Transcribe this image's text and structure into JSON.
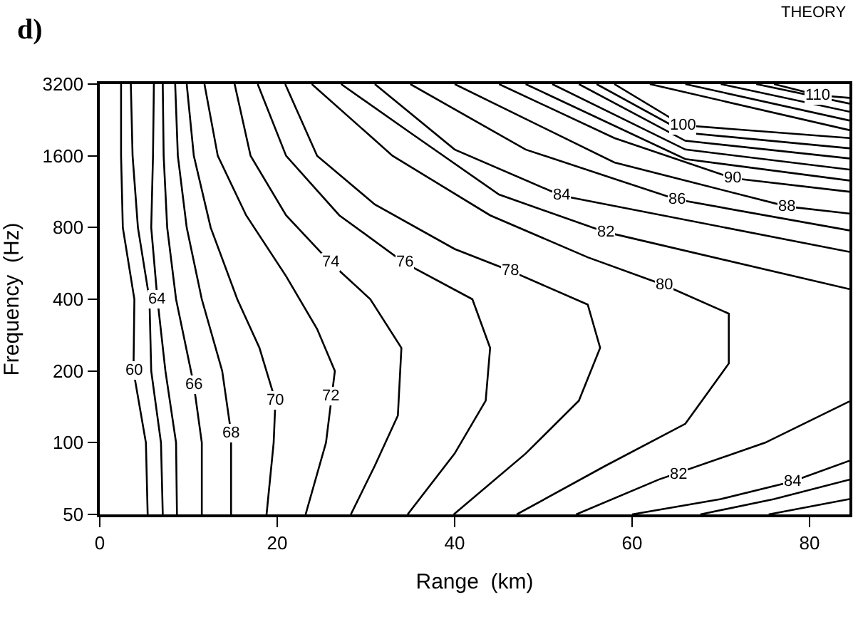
{
  "chart_data": {
    "type": "line",
    "title": "d)",
    "xlabel": "Range  (km)",
    "ylabel": "Frequency  (Hz)",
    "xlim": [
      0,
      84.5
    ],
    "xticks": [
      0,
      20,
      40,
      60,
      80
    ],
    "ylim": [
      50,
      3200
    ],
    "yticks": [
      50,
      100,
      200,
      400,
      800,
      1600,
      3200
    ],
    "log": "y",
    "marker": "none",
    "line_style": "solid",
    "series": [
      {
        "color": "#000000",
        "x": [
          5.4,
          5.2,
          3.8,
          3.9,
          2.6,
          2.4,
          2.4
        ],
        "values": [
          50,
          100,
          200,
          400,
          800,
          1600,
          3200
        ]
      },
      {
        "color": "#000000",
        "x": [
          7.1,
          6.9,
          5.8,
          5.6,
          4.3,
          3.7,
          3.5
        ],
        "values": [
          50,
          100,
          200,
          400,
          800,
          1600,
          3200
        ]
      },
      {
        "color": "#000000",
        "x": [
          8.7,
          8.6,
          7.4,
          6.5,
          5.8,
          6.0,
          6.1
        ],
        "values": [
          50,
          100,
          200,
          400,
          800,
          1600,
          3200
        ]
      },
      {
        "color": "#000000",
        "x": [
          11.5,
          11.5,
          10.6,
          8.6,
          7.6,
          7.2,
          7.1
        ],
        "values": [
          50,
          100,
          175,
          400,
          800,
          1600,
          3200
        ]
      },
      {
        "color": "#000000",
        "x": [
          14.8,
          14.8,
          13.8,
          11.5,
          9.8,
          8.8,
          8.5
        ],
        "values": [
          50,
          110,
          200,
          400,
          800,
          1600,
          3200
        ]
      },
      {
        "color": "#000000",
        "x": [
          18.8,
          19.6,
          19.8,
          18,
          15.5,
          12.5,
          10.6,
          9.8
        ],
        "values": [
          50,
          100,
          150,
          250,
          400,
          800,
          1600,
          3200
        ]
      },
      {
        "color": "#000000",
        "x": [
          23.2,
          25.5,
          26.5,
          24.5,
          21,
          16.5,
          13.3,
          11.8
        ],
        "values": [
          50,
          100,
          200,
          300,
          500,
          900,
          1600,
          3200
        ]
      },
      {
        "color": "#000000",
        "x": [
          28.3,
          31,
          33.6,
          34,
          30.5,
          26,
          21,
          17,
          15.2
        ],
        "values": [
          50,
          80,
          130,
          250,
          400,
          570,
          900,
          1600,
          3200
        ]
      },
      {
        "color": "#000000",
        "x": [
          34.7,
          40,
          43.5,
          44,
          42,
          34.3,
          27,
          21,
          17.8
        ],
        "values": [
          50,
          90,
          150,
          250,
          400,
          570,
          900,
          1600,
          3200
        ]
      },
      {
        "color": "#000000",
        "x": [
          39.9,
          48,
          54,
          56.4,
          55,
          46.2,
          40,
          31,
          24.5,
          20.9
        ],
        "values": [
          50,
          90,
          150,
          250,
          380,
          528,
          650,
          1000,
          1600,
          3200
        ]
      },
      {
        "color": "#000000",
        "x": [
          47,
          57,
          66,
          70.9,
          70.9,
          63.6,
          55,
          44,
          33,
          23.9
        ],
        "values": [
          50,
          80,
          120,
          215,
          348,
          459,
          600,
          900,
          1600,
          3200
        ]
      },
      {
        "color": "#000000",
        "x": [
          53.7,
          63,
          75,
          84.5
        ],
        "values": [
          50,
          70,
          100,
          149
        ]
      },
      {
        "color": "#000000",
        "x": [
          60,
          70,
          78,
          84.5
        ],
        "values": [
          50,
          58,
          68.6,
          84
        ]
      },
      {
        "color": "#000000",
        "x": [
          67.7,
          76,
          84.5
        ],
        "values": [
          50,
          58,
          70
        ]
      },
      {
        "color": "#000000",
        "x": [
          75.4,
          84.5
        ],
        "values": [
          50,
          58
        ]
      },
      {
        "color": "#000000",
        "x": [
          84.5,
          57,
          45,
          35,
          27.2
        ],
        "values": [
          441,
          766,
          1100,
          2000,
          3200
        ]
      },
      {
        "color": "#000000",
        "x": [
          84.5,
          52,
          40,
          31
        ],
        "values": [
          632,
          1090,
          1700,
          3200
        ]
      },
      {
        "color": "#000000",
        "x": [
          84.5,
          65,
          48,
          35
        ],
        "values": [
          778,
          1050,
          1700,
          3200
        ]
      },
      {
        "color": "#000000",
        "x": [
          84.5,
          77.5,
          58,
          40
        ],
        "values": [
          915,
          980,
          1500,
          3200
        ]
      },
      {
        "color": "#000000",
        "x": [
          84.5,
          71.3,
          58,
          45
        ],
        "values": [
          1130,
          1290,
          1900,
          3200
        ]
      },
      {
        "color": "#000000",
        "x": [
          84.5,
          66,
          48
        ],
        "values": [
          1260,
          1550,
          3200
        ]
      },
      {
        "color": "#000000",
        "x": [
          84.5,
          66,
          51
        ],
        "values": [
          1400,
          1700,
          3200
        ]
      },
      {
        "color": "#000000",
        "x": [
          84.5,
          66,
          54
        ],
        "values": [
          1560,
          1850,
          3200
        ]
      },
      {
        "color": "#000000",
        "x": [
          84.5,
          66,
          56
        ],
        "values": [
          1720,
          2000,
          3200
        ]
      },
      {
        "color": "#000000",
        "x": [
          84.5,
          65.7,
          58
        ],
        "values": [
          1900,
          2150,
          3200
        ]
      },
      {
        "color": "#000000",
        "x": [
          84.5,
          62
        ],
        "values": [
          2050,
          3200
        ]
      },
      {
        "color": "#000000",
        "x": [
          84.5,
          66
        ],
        "values": [
          2250,
          3200
        ]
      },
      {
        "color": "#000000",
        "x": [
          84.5,
          70
        ],
        "values": [
          2450,
          3200
        ]
      },
      {
        "color": "#000000",
        "x": [
          84.5,
          74
        ],
        "values": [
          2650,
          3200
        ]
      },
      {
        "color": "#000000",
        "x": [
          84.5,
          81,
          76
        ],
        "values": [
          2800,
          2870,
          3200
        ]
      }
    ],
    "annotations": [
      "THEORY",
      {
        "text": "60",
        "x": 3.8,
        "y": 200
      },
      {
        "text": "64",
        "x": 6.5,
        "y": 400
      },
      {
        "text": "66",
        "x": 10.6,
        "y": 175
      },
      {
        "text": "68",
        "x": 14.8,
        "y": 110
      },
      {
        "text": "70",
        "x": 19.8,
        "y": 150
      },
      {
        "text": "72",
        "x": 26.1,
        "y": 157
      },
      {
        "text": "74",
        "x": 26,
        "y": 570
      },
      {
        "text": "76",
        "x": 34.3,
        "y": 570
      },
      {
        "text": "78",
        "x": 46.2,
        "y": 528
      },
      {
        "text": "80",
        "x": 63.6,
        "y": 459
      },
      {
        "text": "82",
        "x": 57,
        "y": 766
      },
      {
        "text": "84",
        "x": 52,
        "y": 1090
      },
      {
        "text": "86",
        "x": 65,
        "y": 1050
      },
      {
        "text": "88",
        "x": 77.5,
        "y": 980
      },
      {
        "text": "90",
        "x": 71.3,
        "y": 1290
      },
      {
        "text": "100",
        "x": 65.7,
        "y": 2150
      },
      {
        "text": "110",
        "x": 81,
        "y": 2870
      },
      {
        "text": "82",
        "x": 65.3,
        "y": 74
      },
      {
        "text": "84",
        "x": 78,
        "y": 68.6
      }
    ]
  }
}
